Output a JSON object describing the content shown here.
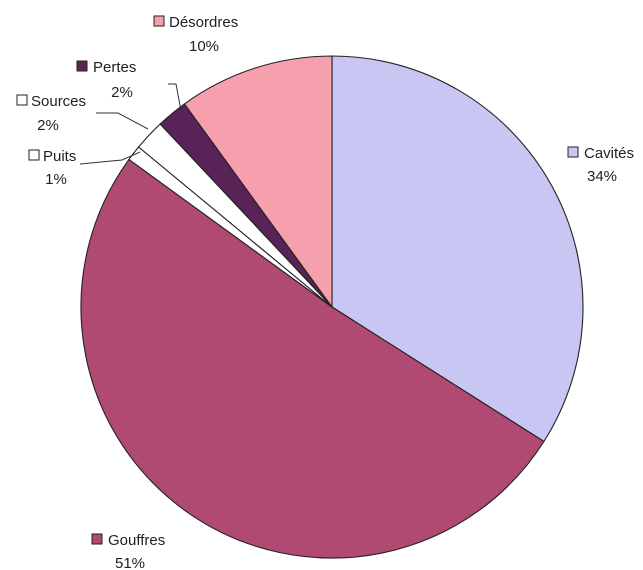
{
  "chart_data": {
    "type": "pie",
    "title": "",
    "slices": [
      {
        "name": "Cavités",
        "value": 34,
        "label": "34%",
        "color": "#c8c7f4"
      },
      {
        "name": "Gouffres",
        "value": 51,
        "label": "51%",
        "color": "#b04a72"
      },
      {
        "name": "Puits",
        "value": 1,
        "label": "1%",
        "color": "#ffffff"
      },
      {
        "name": "Sources",
        "value": 2,
        "label": "2%",
        "color": "#ffffff"
      },
      {
        "name": "Pertes",
        "value": 2,
        "label": "2%",
        "color": "#5a2357"
      },
      {
        "name": "Désordres",
        "value": 10,
        "label": "10%",
        "color": "#f6a0ae"
      }
    ],
    "start": "top-center",
    "direction": "clockwise",
    "legend": "inline-labels"
  }
}
